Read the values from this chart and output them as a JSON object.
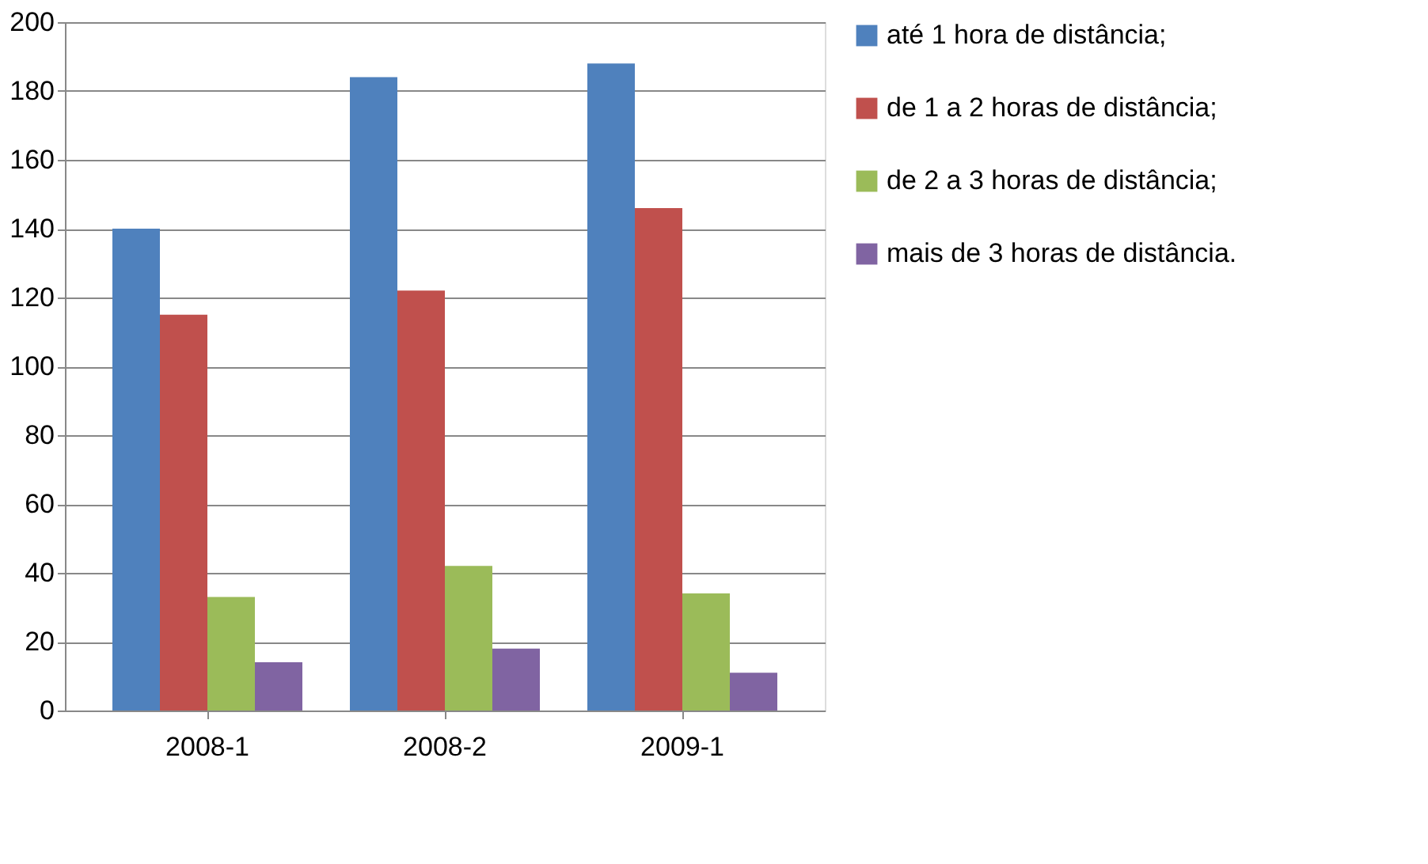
{
  "chart_data": {
    "type": "bar",
    "categories": [
      "2008-1",
      "2008-2",
      "2009-1"
    ],
    "series": [
      {
        "name": "até 1 hora de distância;",
        "color": "#4f81bd",
        "values": [
          140,
          184,
          188
        ]
      },
      {
        "name": "de 1 a 2 horas de distância;",
        "color": "#c0504d",
        "values": [
          115,
          122,
          146
        ]
      },
      {
        "name": "de 2 a 3 horas de distância;",
        "color": "#9bbb59",
        "values": [
          33,
          42,
          34
        ]
      },
      {
        "name": "mais de 3 horas de distância.",
        "color": "#8064a2",
        "values": [
          14,
          18,
          11
        ]
      }
    ],
    "ylim": [
      0,
      200
    ],
    "yticks": [
      0,
      20,
      40,
      60,
      80,
      100,
      120,
      140,
      160,
      180,
      200
    ],
    "grid": "y",
    "legend": "right"
  }
}
